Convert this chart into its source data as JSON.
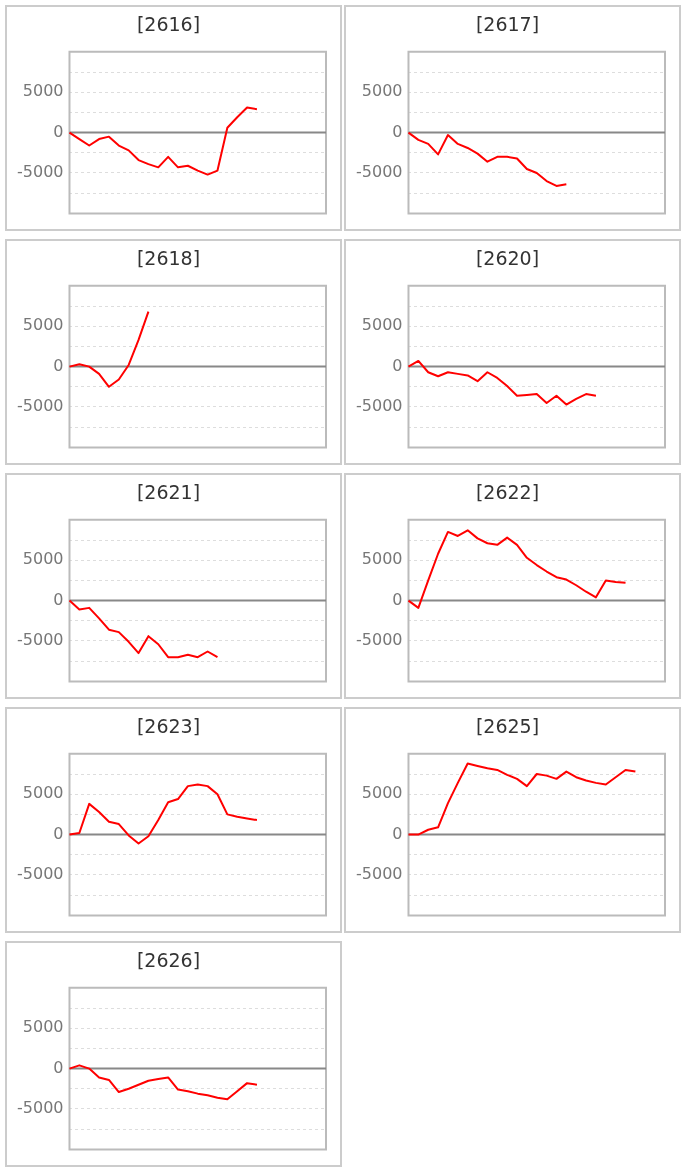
{
  "chart_data": [
    {
      "type": "line",
      "title": "[2616]",
      "ref_lines": [
        {
          "axis": "y",
          "value": 0,
          "color": "#888888"
        }
      ],
      "categories": [
        null,
        null,
        null,
        null,
        null,
        null,
        null,
        null,
        null,
        null,
        null,
        null,
        null,
        null,
        null,
        null,
        null,
        null,
        null,
        null,
        null,
        null,
        null,
        null,
        null,
        null,
        null
      ],
      "series": [
        {
          "color": "#ff0000",
          "values": [
            0,
            -800,
            -1600,
            -800,
            -500,
            -1600,
            -2200,
            -3400,
            -3900,
            -4300,
            -3000,
            -4300,
            -4100,
            -4700,
            -5200,
            -4700,
            600,
            1900,
            3100,
            2900,
            null,
            null,
            null,
            null,
            null,
            null,
            null
          ]
        }
      ],
      "ylim": [
        -10000,
        10000
      ],
      "yticks": [
        {
          "value": -7500,
          "label": null
        },
        -5000,
        {
          "value": -2500,
          "label": null
        },
        0,
        {
          "value": 2500,
          "label": null
        },
        5000,
        {
          "value": 7500,
          "label": null
        }
      ],
      "grid": "y",
      "tick_labels": "y",
      "marker": "none"
    },
    {
      "type": "line",
      "title": "[2617]",
      "ref_lines": [
        {
          "axis": "y",
          "value": 0,
          "color": "#888888"
        }
      ],
      "categories": [
        null,
        null,
        null,
        null,
        null,
        null,
        null,
        null,
        null,
        null,
        null,
        null,
        null,
        null,
        null,
        null,
        null,
        null,
        null,
        null,
        null,
        null,
        null,
        null,
        null,
        null,
        null
      ],
      "series": [
        {
          "color": "#ff0000",
          "values": [
            0,
            -900,
            -1400,
            -2700,
            -300,
            -1400,
            -1900,
            -2600,
            -3600,
            -3000,
            -3000,
            -3200,
            -4500,
            -5000,
            -6000,
            -6600,
            -6400,
            null,
            null,
            null,
            null,
            null,
            null,
            null,
            null,
            null,
            null
          ]
        }
      ],
      "ylim": [
        -10000,
        10000
      ],
      "yticks": [
        {
          "value": -7500,
          "label": null
        },
        -5000,
        {
          "value": -2500,
          "label": null
        },
        0,
        {
          "value": 2500,
          "label": null
        },
        5000,
        {
          "value": 7500,
          "label": null
        }
      ],
      "grid": "y",
      "tick_labels": "y",
      "marker": "none"
    },
    {
      "type": "line",
      "title": "[2618]",
      "ref_lines": [
        {
          "axis": "y",
          "value": 0,
          "color": "#888888"
        }
      ],
      "categories": [
        null,
        null,
        null,
        null,
        null,
        null,
        null,
        null,
        null,
        null,
        null,
        null,
        null,
        null,
        null,
        null,
        null,
        null,
        null,
        null,
        null,
        null,
        null,
        null,
        null,
        null,
        null
      ],
      "series": [
        {
          "color": "#ff0000",
          "values": [
            0,
            300,
            0,
            -900,
            -2500,
            -1600,
            200,
            3300,
            6800,
            null,
            null,
            null,
            null,
            null,
            null,
            null,
            null,
            null,
            null,
            null,
            null,
            null,
            null,
            null,
            null,
            null,
            null
          ]
        }
      ],
      "ylim": [
        -10000,
        10000
      ],
      "yticks": [
        {
          "value": -7500,
          "label": null
        },
        -5000,
        {
          "value": -2500,
          "label": null
        },
        0,
        {
          "value": 2500,
          "label": null
        },
        5000,
        {
          "value": 7500,
          "label": null
        }
      ],
      "grid": "y",
      "tick_labels": "y",
      "marker": "none"
    },
    {
      "type": "line",
      "title": "[2620]",
      "ref_lines": [
        {
          "axis": "y",
          "value": 0,
          "color": "#888888"
        }
      ],
      "categories": [
        null,
        null,
        null,
        null,
        null,
        null,
        null,
        null,
        null,
        null,
        null,
        null,
        null,
        null,
        null,
        null,
        null,
        null,
        null,
        null,
        null,
        null,
        null,
        null,
        null,
        null,
        null
      ],
      "series": [
        {
          "color": "#ff0000",
          "values": [
            0,
            700,
            -700,
            -1200,
            -700,
            -900,
            -1100,
            -1800,
            -700,
            -1400,
            -2400,
            -3600,
            -3500,
            -3400,
            -4500,
            -3600,
            -4700,
            -4000,
            -3400,
            -3600,
            null,
            null,
            null,
            null,
            null,
            null,
            null
          ]
        }
      ],
      "ylim": [
        -10000,
        10000
      ],
      "yticks": [
        {
          "value": -7500,
          "label": null
        },
        -5000,
        {
          "value": -2500,
          "label": null
        },
        0,
        {
          "value": 2500,
          "label": null
        },
        5000,
        {
          "value": 7500,
          "label": null
        }
      ],
      "grid": "y",
      "tick_labels": "y",
      "marker": "none"
    },
    {
      "type": "line",
      "title": "[2621]",
      "ref_lines": [
        {
          "axis": "y",
          "value": 0,
          "color": "#888888"
        }
      ],
      "categories": [
        null,
        null,
        null,
        null,
        null,
        null,
        null,
        null,
        null,
        null,
        null,
        null,
        null,
        null,
        null,
        null,
        null,
        null,
        null,
        null,
        null,
        null,
        null,
        null,
        null,
        null,
        null
      ],
      "series": [
        {
          "color": "#ff0000",
          "values": [
            0,
            -1100,
            -900,
            -2200,
            -3600,
            -3900,
            -5100,
            -6500,
            -4400,
            -5400,
            -7000,
            -7000,
            -6700,
            -7000,
            -6300,
            -7000,
            null,
            null,
            null,
            null,
            null,
            null,
            null,
            null,
            null,
            null,
            null
          ]
        }
      ],
      "ylim": [
        -10000,
        10000
      ],
      "yticks": [
        {
          "value": -7500,
          "label": null
        },
        -5000,
        {
          "value": -2500,
          "label": null
        },
        0,
        {
          "value": 2500,
          "label": null
        },
        5000,
        {
          "value": 7500,
          "label": null
        }
      ],
      "grid": "y",
      "tick_labels": "y",
      "marker": "none"
    },
    {
      "type": "line",
      "title": "[2622]",
      "ref_lines": [
        {
          "axis": "y",
          "value": 0,
          "color": "#888888"
        }
      ],
      "categories": [
        null,
        null,
        null,
        null,
        null,
        null,
        null,
        null,
        null,
        null,
        null,
        null,
        null,
        null,
        null,
        null,
        null,
        null,
        null,
        null,
        null,
        null,
        null,
        null,
        null,
        null,
        null
      ],
      "series": [
        {
          "color": "#ff0000",
          "values": [
            0,
            -900,
            2500,
            5800,
            8500,
            8000,
            8700,
            7700,
            7100,
            6900,
            7800,
            6900,
            5300,
            4400,
            3600,
            2900,
            2600,
            1900,
            1100,
            400,
            2500,
            2300,
            2200,
            null,
            null,
            null,
            null
          ]
        }
      ],
      "ylim": [
        -10000,
        10000
      ],
      "yticks": [
        {
          "value": -7500,
          "label": null
        },
        -5000,
        {
          "value": -2500,
          "label": null
        },
        0,
        {
          "value": 2500,
          "label": null
        },
        5000,
        {
          "value": 7500,
          "label": null
        }
      ],
      "grid": "y",
      "tick_labels": "y",
      "marker": "none"
    },
    {
      "type": "line",
      "title": "[2623]",
      "ref_lines": [
        {
          "axis": "y",
          "value": 0,
          "color": "#888888"
        }
      ],
      "categories": [
        null,
        null,
        null,
        null,
        null,
        null,
        null,
        null,
        null,
        null,
        null,
        null,
        null,
        null,
        null,
        null,
        null,
        null,
        null,
        null,
        null,
        null,
        null,
        null,
        null,
        null,
        null
      ],
      "series": [
        {
          "color": "#ff0000",
          "values": [
            0,
            200,
            3800,
            2800,
            1600,
            1300,
            -100,
            -1100,
            -200,
            1800,
            4000,
            4400,
            6000,
            6200,
            6000,
            5000,
            2500,
            2200,
            2000,
            1800,
            null,
            null,
            null,
            null,
            null,
            null,
            null
          ]
        }
      ],
      "ylim": [
        -10000,
        10000
      ],
      "yticks": [
        {
          "value": -7500,
          "label": null
        },
        -5000,
        {
          "value": -2500,
          "label": null
        },
        0,
        {
          "value": 2500,
          "label": null
        },
        5000,
        {
          "value": 7500,
          "label": null
        }
      ],
      "grid": "y",
      "tick_labels": "y",
      "marker": "none"
    },
    {
      "type": "line",
      "title": "[2625]",
      "ref_lines": [
        {
          "axis": "y",
          "value": 0,
          "color": "#888888"
        }
      ],
      "categories": [
        null,
        null,
        null,
        null,
        null,
        null,
        null,
        null,
        null,
        null,
        null,
        null,
        null,
        null,
        null,
        null,
        null,
        null,
        null,
        null,
        null,
        null,
        null,
        null,
        null,
        null,
        null
      ],
      "series": [
        {
          "color": "#ff0000",
          "values": [
            0,
            0,
            600,
            900,
            3900,
            6400,
            8800,
            8500,
            8200,
            8000,
            7400,
            6900,
            6000,
            7500,
            7300,
            6900,
            7800,
            7100,
            6700,
            6400,
            6200,
            7100,
            8000,
            7800,
            null,
            null,
            null
          ]
        }
      ],
      "ylim": [
        -10000,
        10000
      ],
      "yticks": [
        {
          "value": -7500,
          "label": null
        },
        -5000,
        {
          "value": -2500,
          "label": null
        },
        0,
        {
          "value": 2500,
          "label": null
        },
        5000,
        {
          "value": 7500,
          "label": null
        }
      ],
      "grid": "y",
      "tick_labels": "y",
      "marker": "none"
    },
    {
      "type": "line",
      "title": "[2626]",
      "ref_lines": [
        {
          "axis": "y",
          "value": 0,
          "color": "#888888"
        }
      ],
      "categories": [
        null,
        null,
        null,
        null,
        null,
        null,
        null,
        null,
        null,
        null,
        null,
        null,
        null,
        null,
        null,
        null,
        null,
        null,
        null,
        null,
        null,
        null,
        null,
        null,
        null,
        null,
        null
      ],
      "series": [
        {
          "color": "#ff0000",
          "values": [
            0,
            400,
            0,
            -1100,
            -1400,
            -2900,
            -2500,
            -2000,
            -1500,
            -1300,
            -1100,
            -2600,
            -2800,
            -3100,
            -3300,
            -3600,
            -3800,
            -2800,
            -1800,
            -2000,
            null,
            null,
            null,
            null,
            null,
            null,
            null
          ]
        }
      ],
      "ylim": [
        -10000,
        10000
      ],
      "yticks": [
        {
          "value": -7500,
          "label": null
        },
        -5000,
        {
          "value": -2500,
          "label": null
        },
        0,
        {
          "value": 2500,
          "label": null
        },
        5000,
        {
          "value": 7500,
          "label": null
        }
      ],
      "grid": "y",
      "tick_labels": "y",
      "marker": "none"
    }
  ]
}
